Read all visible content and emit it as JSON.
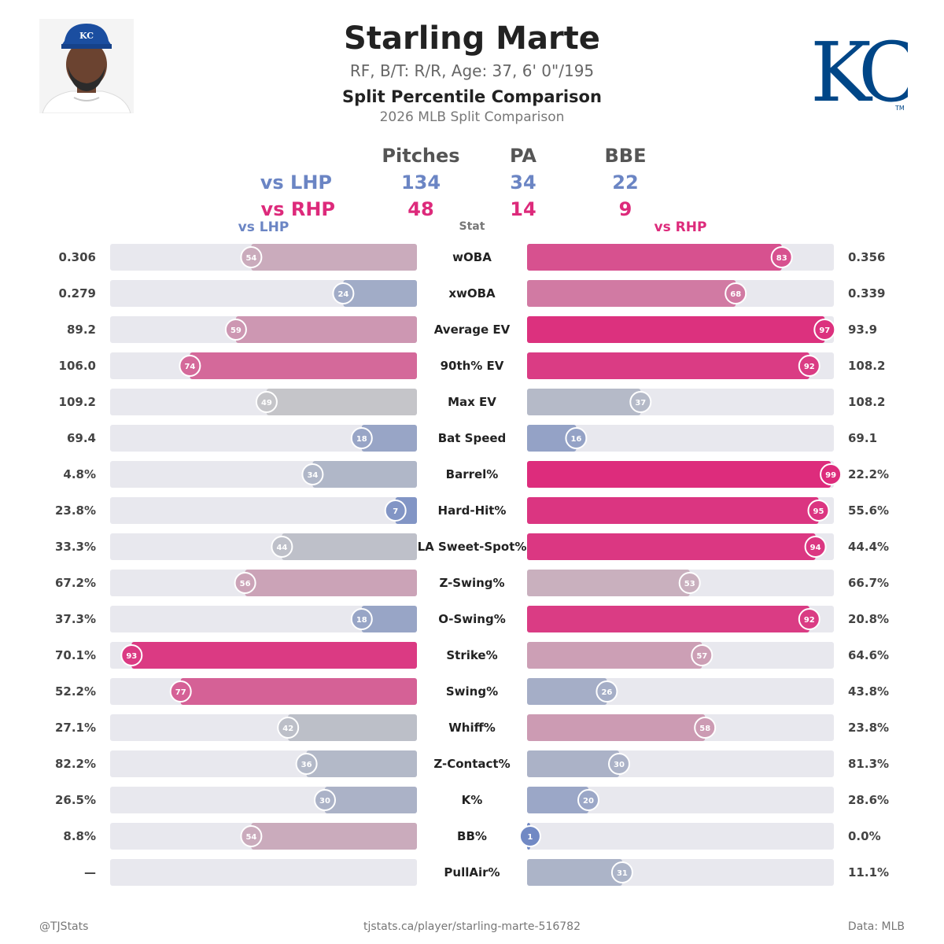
{
  "header": {
    "name": "Starling Marte",
    "bio": "RF, B/T: R/R, Age: 37, 6' 0\"/195",
    "title": "Split Percentile Comparison",
    "subtitle": "2026 MLB Split Comparison"
  },
  "logo": {
    "text": "KC",
    "trademark": "TM",
    "color": "#004687"
  },
  "counts": {
    "headers": [
      "Pitches",
      "PA",
      "BBE"
    ],
    "rows": [
      {
        "label": "vs LHP",
        "values": [
          "134",
          "34",
          "22"
        ]
      },
      {
        "label": "vs RHP",
        "values": [
          "48",
          "14",
          "9"
        ]
      }
    ]
  },
  "columns": {
    "left": "vs LHP",
    "stat": "Stat",
    "right": "vs RHP"
  },
  "footer": {
    "left": "@TJStats",
    "center": "tjstats.ca/player/starling-marte-516782",
    "right": "Data: MLB"
  },
  "colors": {
    "lhp": "#6b85c4",
    "rhp": "#dd2a7b",
    "track": "#e8e8ee",
    "neutral": "#c6c6c9"
  },
  "chart_data": {
    "type": "bar",
    "scale": [
      0,
      100
    ],
    "categories": [
      "wOBA",
      "xwOBA",
      "Average EV",
      "90th% EV",
      "Max EV",
      "Bat Speed",
      "Barrel%",
      "Hard-Hit%",
      "LA Sweet-Spot%",
      "Z-Swing%",
      "O-Swing%",
      "Strike%",
      "Swing%",
      "Whiff%",
      "Z-Contact%",
      "K%",
      "BB%",
      "PullAir%"
    ],
    "series": [
      {
        "name": "vs LHP",
        "percentiles": [
          54,
          24,
          59,
          74,
          49,
          18,
          34,
          7,
          44,
          56,
          18,
          93,
          77,
          42,
          36,
          30,
          54,
          null
        ],
        "values": [
          "0.306",
          "0.279",
          "89.2",
          "106.0",
          "109.2",
          "69.4",
          "4.8%",
          "23.8%",
          "33.3%",
          "67.2%",
          "37.3%",
          "70.1%",
          "52.2%",
          "27.1%",
          "82.2%",
          "26.5%",
          "8.8%",
          "—"
        ]
      },
      {
        "name": "vs RHP",
        "percentiles": [
          83,
          68,
          97,
          92,
          37,
          16,
          99,
          95,
          94,
          53,
          92,
          57,
          26,
          58,
          30,
          20,
          1,
          31
        ],
        "values": [
          "0.356",
          "0.339",
          "93.9",
          "108.2",
          "108.2",
          "69.1",
          "22.2%",
          "55.6%",
          "44.4%",
          "66.7%",
          "20.8%",
          "64.6%",
          "43.8%",
          "23.8%",
          "81.3%",
          "28.6%",
          "0.0%",
          "11.1%"
        ]
      }
    ]
  }
}
